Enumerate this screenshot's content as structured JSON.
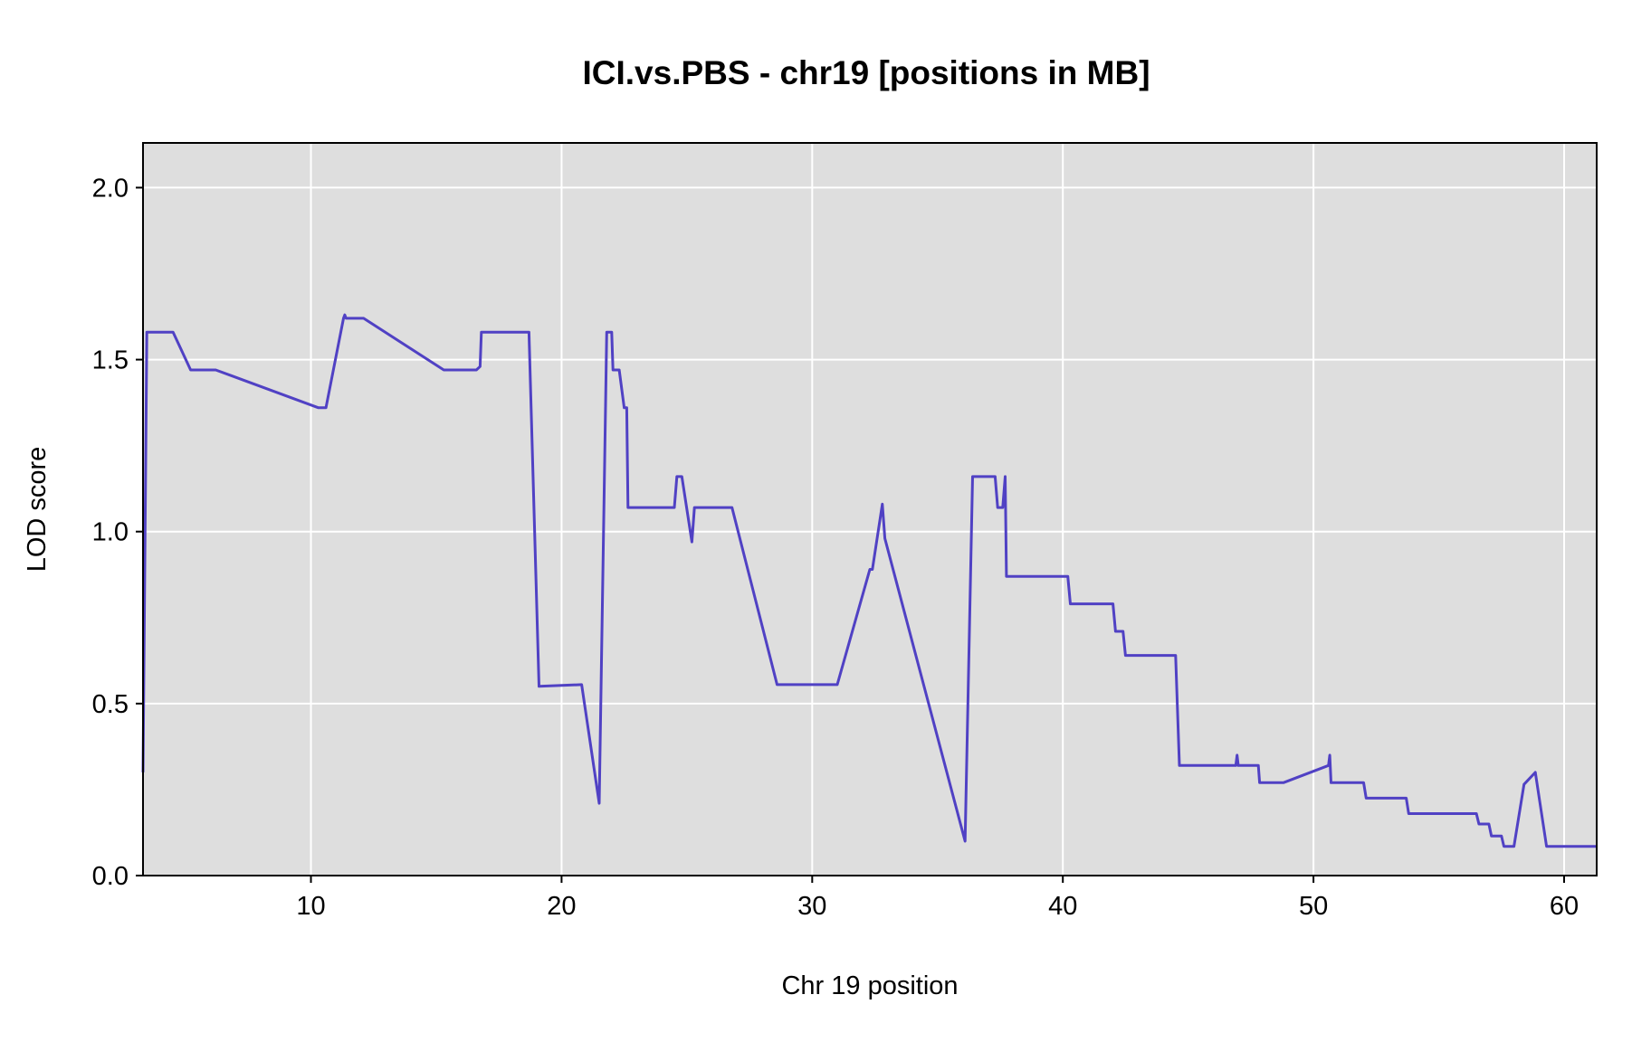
{
  "chart_data": {
    "type": "line",
    "title": "ICI.vs.PBS - chr19 [positions in MB]",
    "xlabel": "Chr 19 position",
    "ylabel": "LOD score",
    "xlim": [
      3.3,
      61.3
    ],
    "ylim": [
      0,
      2.13
    ],
    "xticks": [
      10,
      20,
      30,
      40,
      50,
      60
    ],
    "yticks": [
      0.0,
      0.5,
      1.0,
      1.5,
      2.0
    ],
    "xtick_labels": [
      "10",
      "20",
      "30",
      "40",
      "50",
      "60"
    ],
    "ytick_labels": [
      "0.0",
      "0.5",
      "1.0",
      "1.5",
      "2.0"
    ],
    "grid": true,
    "background": "#dedede",
    "gridcolor": "#ffffff",
    "series": [
      {
        "color": "#5041c4",
        "x": [
          3.3,
          3.45,
          3.5,
          4.5,
          5.2,
          6.2,
          10.3,
          10.6,
          11.3,
          11.35,
          11.4,
          12.1,
          15.3,
          16.6,
          16.75,
          16.8,
          17.0,
          18.7,
          19.1,
          20.8,
          21.5,
          21.8,
          22.0,
          22.05,
          22.3,
          22.5,
          22.6,
          22.65,
          22.7,
          24.5,
          24.6,
          24.7,
          24.8,
          25.2,
          25.3,
          26.8,
          28.6,
          31.0,
          32.3,
          32.4,
          32.8,
          32.9,
          36.1,
          36.4,
          37.3,
          37.4,
          37.6,
          37.7,
          37.75,
          40.2,
          40.3,
          41.9,
          42.0,
          42.1,
          42.4,
          42.5,
          44.5,
          44.65,
          46.9,
          46.95,
          47.0,
          47.8,
          47.85,
          48.3,
          48.8,
          50.6,
          50.65,
          50.7,
          52.0,
          52.1,
          53.0,
          53.1,
          53.7,
          53.8,
          56.5,
          56.6,
          57.0,
          57.1,
          57.5,
          57.6,
          58.0,
          58.4,
          58.85,
          59.3,
          61.3
        ],
        "y": [
          0.3,
          1.58,
          1.58,
          1.58,
          1.47,
          1.47,
          1.36,
          1.36,
          1.62,
          1.63,
          1.62,
          1.62,
          1.47,
          1.47,
          1.48,
          1.58,
          1.58,
          1.58,
          0.55,
          0.555,
          0.21,
          1.58,
          1.58,
          1.47,
          1.47,
          1.36,
          1.36,
          1.07,
          1.07,
          1.07,
          1.16,
          1.16,
          1.16,
          0.97,
          1.07,
          1.07,
          0.555,
          0.555,
          0.89,
          0.89,
          1.08,
          0.98,
          0.1,
          1.16,
          1.16,
          1.07,
          1.07,
          1.16,
          0.87,
          0.87,
          0.79,
          0.79,
          0.79,
          0.71,
          0.71,
          0.64,
          0.64,
          0.32,
          0.32,
          0.35,
          0.32,
          0.32,
          0.27,
          0.27,
          0.27,
          0.32,
          0.35,
          0.27,
          0.27,
          0.225,
          0.225,
          0.225,
          0.225,
          0.18,
          0.18,
          0.15,
          0.15,
          0.115,
          0.115,
          0.085,
          0.085,
          0.265,
          0.3,
          0.085,
          0.085
        ]
      }
    ]
  }
}
